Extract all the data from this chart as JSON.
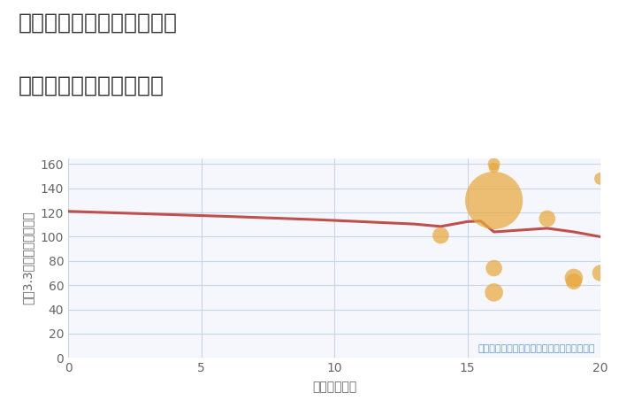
{
  "title_line1": "福岡県福岡市中央区平和の",
  "title_line2": "駅距離別中古戸建て価格",
  "xlabel": "駅距離（分）",
  "ylabel": "坪（3.3㎡）単価（万円）",
  "fig_bg_color": "#ffffff",
  "plot_bg_color": "#f5f7fc",
  "line_color": "#c0504d",
  "scatter_color": "#e8a83e",
  "annotation_text": "円の大きさは、取引のあった物件面積を示す",
  "annotation_color": "#5b9bd5",
  "line_x": [
    0,
    1,
    2,
    3,
    4,
    5,
    6,
    7,
    8,
    9,
    10,
    11,
    12,
    13,
    14,
    14.5,
    15,
    15.5,
    16,
    17,
    18,
    19,
    20
  ],
  "line_y": [
    121,
    120.3,
    119.6,
    118.9,
    118.2,
    117.5,
    116.8,
    116.0,
    115.2,
    114.4,
    113.5,
    112.5,
    111.5,
    110.5,
    108.5,
    110.5,
    112.5,
    113,
    104,
    105.5,
    107,
    104,
    100
  ],
  "scatter_x": [
    14,
    16,
    16,
    16,
    16,
    16,
    18,
    19,
    19,
    20,
    20
  ],
  "scatter_y": [
    101,
    160,
    157,
    130,
    74,
    54,
    115,
    66,
    63,
    148,
    70
  ],
  "scatter_sizes": [
    180,
    100,
    70,
    2200,
    180,
    220,
    180,
    220,
    170,
    100,
    180
  ],
  "xlim": [
    0,
    20
  ],
  "ylim": [
    0,
    165
  ],
  "xticks": [
    0,
    5,
    10,
    15,
    20
  ],
  "yticks": [
    0,
    20,
    40,
    60,
    80,
    100,
    120,
    140,
    160
  ],
  "grid_color": "#c8d4e8",
  "tick_color": "#666666",
  "title_color": "#333333",
  "title_fontsize": 18,
  "tick_fontsize": 10,
  "label_fontsize": 10
}
